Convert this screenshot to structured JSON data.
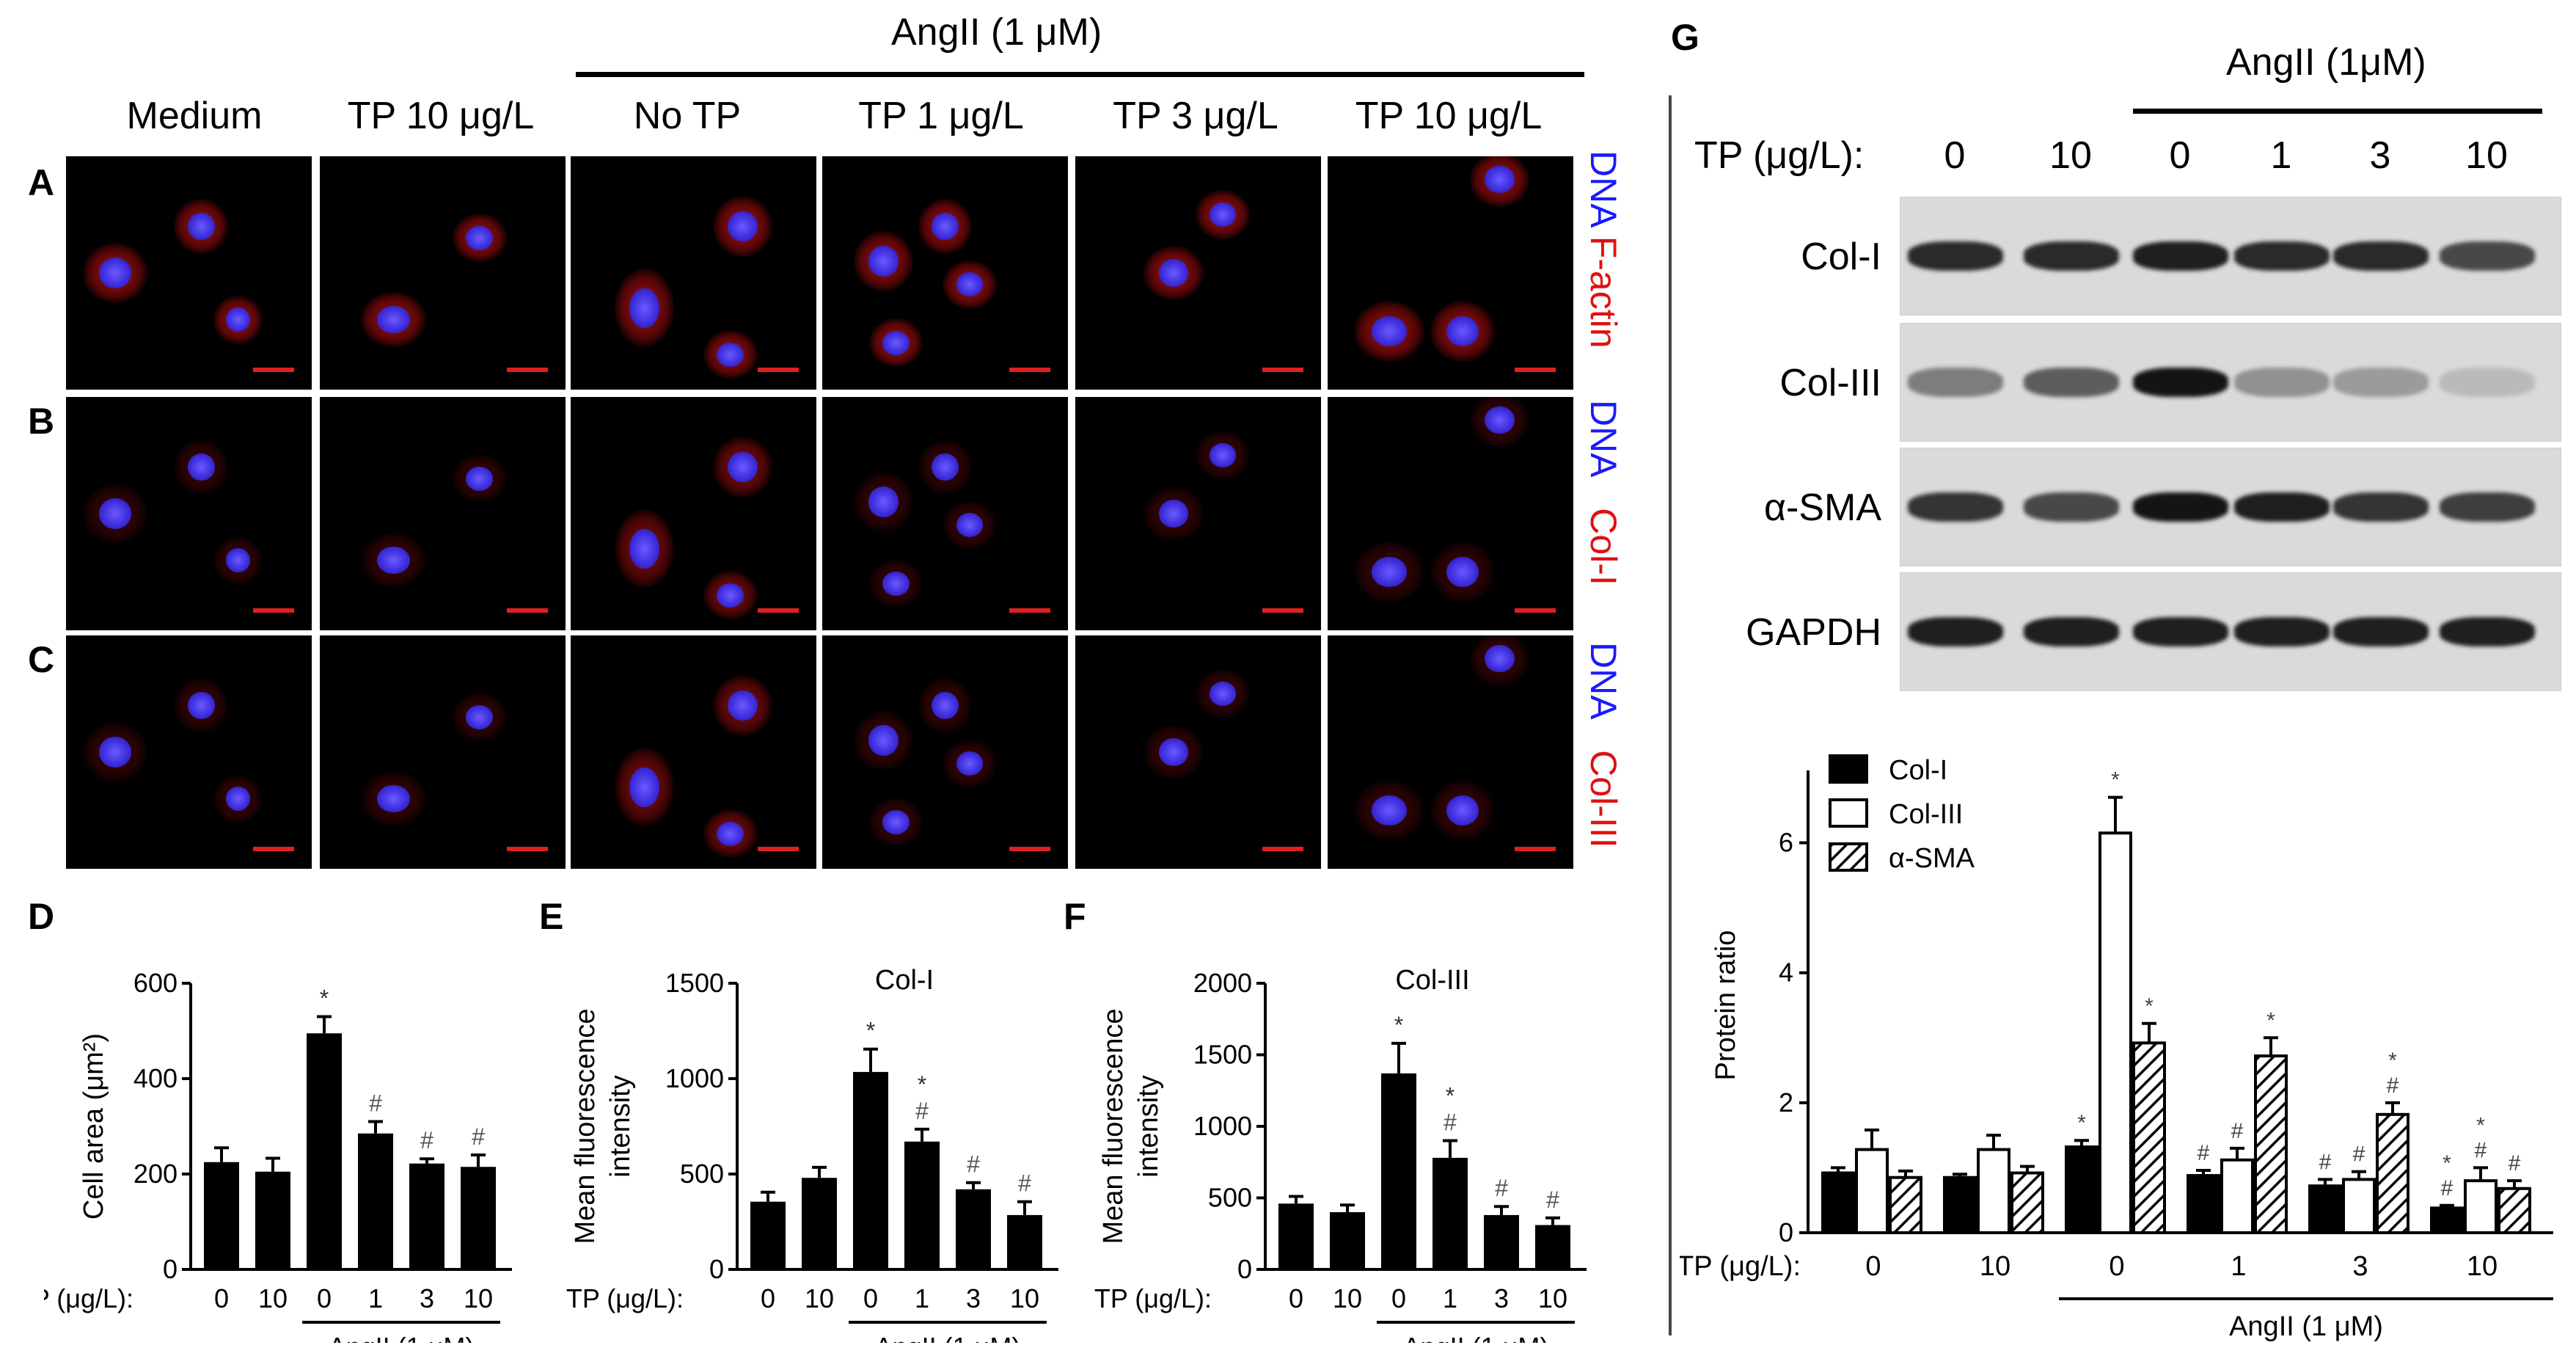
{
  "left_panels": {
    "angii_header": "AngII (1 μM)",
    "columns": [
      "Medium",
      "TP 10 μg/L",
      "No TP",
      "TP 1 μg/L",
      "TP 3 μg/L",
      "TP 10 μg/L"
    ],
    "rows": [
      {
        "letter": "A",
        "stain_blue": "DNA",
        "stain_red": "F-actin"
      },
      {
        "letter": "B",
        "stain_blue": "DNA",
        "stain_red": "Col-I"
      },
      {
        "letter": "C",
        "stain_blue": "DNA",
        "stain_red": "Col-III"
      }
    ]
  },
  "western": {
    "letter": "G",
    "angii_header": "AngII (1μM)",
    "tp_label": "TP (μg/L):",
    "lanes": [
      "0",
      "10",
      "0",
      "1",
      "3",
      "10"
    ],
    "blots": [
      "Col-I",
      "Col-III",
      "α-SMA",
      "GAPDH"
    ]
  },
  "bar_common": {
    "tp_label": "TP (μg/L):",
    "categories": [
      "0",
      "10",
      "0",
      "1",
      "3",
      "10"
    ],
    "angii_label": "AngII (1 μM)"
  },
  "chart_data": [
    {
      "id": "D",
      "type": "bar",
      "letter": "D",
      "title": "",
      "ylabel": "Cell area (μm²)",
      "ylim": [
        0,
        600
      ],
      "yticks": [
        0,
        200,
        400,
        600
      ],
      "categories": [
        "0",
        "10",
        "0",
        "1",
        "3",
        "10"
      ],
      "values": [
        225,
        205,
        495,
        285,
        222,
        215
      ],
      "errors": [
        30,
        28,
        35,
        25,
        10,
        25
      ],
      "annotations": [
        [
          "",
          ""
        ],
        [
          "",
          ""
        ],
        [
          "*",
          ""
        ],
        [
          "#",
          ""
        ],
        [
          "#",
          ""
        ],
        [
          "#",
          ""
        ]
      ]
    },
    {
      "id": "E",
      "type": "bar",
      "letter": "E",
      "title": "Col-I",
      "ylabel": "Mean fluorescence intensity",
      "ylim": [
        0,
        1500
      ],
      "yticks": [
        0,
        500,
        1000,
        1500
      ],
      "categories": [
        "0",
        "10",
        "0",
        "1",
        "3",
        "10"
      ],
      "values": [
        355,
        480,
        1035,
        670,
        420,
        285
      ],
      "errors": [
        50,
        55,
        120,
        65,
        35,
        70
      ],
      "annotations": [
        [
          "",
          ""
        ],
        [
          "",
          ""
        ],
        [
          "*",
          ""
        ],
        [
          "*",
          "#"
        ],
        [
          "#",
          ""
        ],
        [
          "#",
          ""
        ]
      ]
    },
    {
      "id": "F",
      "type": "bar",
      "letter": "F",
      "title": "Col-III",
      "ylabel": "Mean fluorescence intensity",
      "ylim": [
        0,
        2000
      ],
      "yticks": [
        0,
        500,
        1000,
        1500,
        2000
      ],
      "categories": [
        "0",
        "10",
        "0",
        "1",
        "3",
        "10"
      ],
      "values": [
        460,
        400,
        1370,
        780,
        380,
        310
      ],
      "errors": [
        50,
        50,
        210,
        120,
        60,
        50
      ],
      "annotations": [
        [
          "",
          ""
        ],
        [
          "",
          ""
        ],
        [
          "*",
          ""
        ],
        [
          "*",
          "#"
        ],
        [
          "#",
          ""
        ],
        [
          "#",
          ""
        ]
      ]
    },
    {
      "id": "G",
      "type": "bar",
      "ylabel": "Protein ratio",
      "ylim": [
        0,
        7
      ],
      "yticks": [
        0,
        2,
        4,
        6
      ],
      "categories": [
        "0",
        "10",
        "0",
        "1",
        "3",
        "10"
      ],
      "series": [
        {
          "name": "Col-I",
          "values": [
            0.92,
            0.85,
            1.32,
            0.88,
            0.72,
            0.38
          ],
          "errors": [
            0.08,
            0.05,
            0.1,
            0.08,
            0.1,
            0.04
          ],
          "fill": "solid",
          "annotations": [
            [
              "",
              ""
            ],
            [
              "",
              ""
            ],
            [
              "*",
              ""
            ],
            [
              "#",
              ""
            ],
            [
              "#",
              ""
            ],
            [
              "*",
              "#"
            ]
          ]
        },
        {
          "name": "Col-III",
          "values": [
            1.28,
            1.28,
            6.15,
            1.12,
            0.82,
            0.8
          ],
          "errors": [
            0.3,
            0.22,
            0.55,
            0.18,
            0.12,
            0.2
          ],
          "fill": "open",
          "annotations": [
            [
              "",
              ""
            ],
            [
              "",
              ""
            ],
            [
              "*",
              ""
            ],
            [
              "#",
              ""
            ],
            [
              "#",
              ""
            ],
            [
              "*",
              "#"
            ]
          ]
        },
        {
          "name": "α-SMA",
          "values": [
            0.85,
            0.92,
            2.92,
            2.72,
            1.82,
            0.68
          ],
          "errors": [
            0.1,
            0.1,
            0.3,
            0.28,
            0.18,
            0.12
          ],
          "fill": "hatched",
          "annotations": [
            [
              "",
              ""
            ],
            [
              "",
              ""
            ],
            [
              "*",
              ""
            ],
            [
              "*",
              ""
            ],
            [
              "*",
              "#"
            ],
            [
              "#",
              ""
            ]
          ]
        }
      ],
      "legend_position": "top-left"
    }
  ],
  "colors": {
    "dna": "#1a1aff",
    "red_stain": "#e01010",
    "bar": "#000000"
  }
}
